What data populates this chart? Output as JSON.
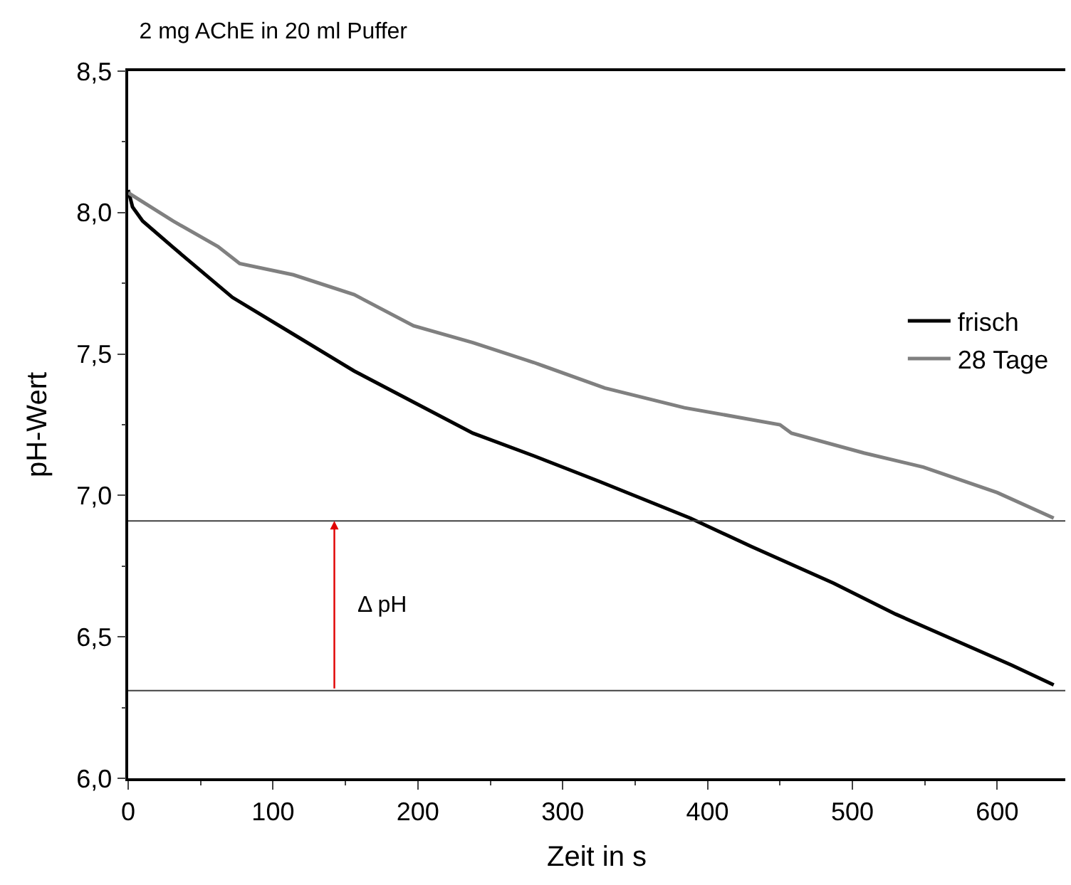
{
  "chart_data": {
    "type": "line",
    "title": "2 mg AChE in 20 ml Puffer",
    "xlabel": "Zeit in s",
    "ylabel": "pH-Wert",
    "xlim": [
      0,
      647
    ],
    "xticks": [
      0,
      100,
      200,
      300,
      400,
      500,
      600
    ],
    "ylim": [
      6.0,
      8.5
    ],
    "yticks": [
      {
        "value": 6.0,
        "label": "6,0"
      },
      {
        "value": 6.5,
        "label": "6,5"
      },
      {
        "value": 7.0,
        "label": "7,0"
      },
      {
        "value": 7.5,
        "label": "7,5"
      },
      {
        "value": 8.0,
        "label": "8,0"
      },
      {
        "value": 8.5,
        "label": "8,5"
      }
    ],
    "legend": "right",
    "marker": "none",
    "line_style": "solid",
    "series": [
      {
        "name": "frisch",
        "color": "#000000",
        "x": [
          0,
          3,
          10,
          31,
          72,
          114,
          156,
          197,
          238,
          280,
          325,
          388,
          430,
          487,
          530,
          570,
          610,
          639
        ],
        "values": [
          8.08,
          8.02,
          7.97,
          7.877,
          7.7,
          7.57,
          7.44,
          7.33,
          7.22,
          7.14,
          7.05,
          6.92,
          6.82,
          6.69,
          6.58,
          6.49,
          6.4,
          6.33
        ]
      },
      {
        "name": "28 Tage",
        "color": "#808080",
        "x": [
          0,
          31,
          62,
          77,
          114,
          156,
          197,
          238,
          280,
          329,
          384,
          450,
          458,
          508,
          549,
          600,
          639
        ],
        "values": [
          8.07,
          7.97,
          7.88,
          7.82,
          7.78,
          7.71,
          7.6,
          7.54,
          7.47,
          7.38,
          7.31,
          7.25,
          7.22,
          7.15,
          7.1,
          7.01,
          6.92
        ]
      }
    ],
    "ref_lines": [
      {
        "axis": "y",
        "value": 6.91,
        "color": "#404040"
      },
      {
        "axis": "y",
        "value": 6.31,
        "color": "#404040"
      }
    ],
    "annotations": [
      "Δ pH"
    ]
  }
}
